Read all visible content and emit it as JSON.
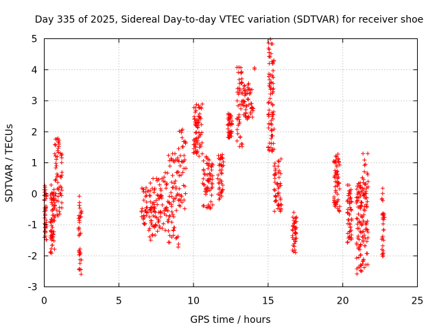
{
  "chart_data": {
    "type": "scatter",
    "title": "Day 335 of 2025, Sidereal Day-to-day VTEC variation (SDTVAR) for receiver shoe",
    "xlabel": "GPS time / hours",
    "ylabel": "SDTVAR / TECUs",
    "xlim": [
      0,
      25
    ],
    "ylim": [
      -3,
      5
    ],
    "xticks": [
      0,
      5,
      10,
      15,
      20,
      25
    ],
    "yticks": [
      -3,
      -2,
      -1,
      0,
      1,
      2,
      3,
      4,
      5
    ],
    "grid": true,
    "marker": "+",
    "color": "#ff0000",
    "clusters": [
      {
        "x": [
          0.0,
          0.15
        ],
        "y": [
          -1.5,
          0.3
        ],
        "n": 40
      },
      {
        "x": [
          0.4,
          0.7
        ],
        "y": [
          -2.0,
          0.3
        ],
        "n": 60
      },
      {
        "x": [
          0.7,
          1.2
        ],
        "y": [
          -0.8,
          1.8
        ],
        "n": 60
      },
      {
        "x": [
          2.3,
          2.5
        ],
        "y": [
          -2.6,
          0.1
        ],
        "n": 35
      },
      {
        "x": [
          6.5,
          7.0
        ],
        "y": [
          -1.0,
          0.2
        ],
        "n": 30
      },
      {
        "x": [
          7.0,
          7.7
        ],
        "y": [
          -1.5,
          0.5
        ],
        "n": 60
      },
      {
        "x": [
          7.7,
          8.3
        ],
        "y": [
          -1.2,
          0.7
        ],
        "n": 40
      },
      {
        "x": [
          8.3,
          9.0
        ],
        "y": [
          -1.8,
          1.3
        ],
        "n": 60
      },
      {
        "x": [
          9.0,
          9.5
        ],
        "y": [
          -0.5,
          2.2
        ],
        "n": 40
      },
      {
        "x": [
          10.0,
          10.6
        ],
        "y": [
          1.2,
          2.9
        ],
        "n": 70
      },
      {
        "x": [
          10.6,
          11.3
        ],
        "y": [
          -0.5,
          1.2
        ],
        "n": 60
      },
      {
        "x": [
          11.6,
          12.0
        ],
        "y": [
          -0.2,
          1.3
        ],
        "n": 40
      },
      {
        "x": [
          12.3,
          12.6
        ],
        "y": [
          1.8,
          2.6
        ],
        "n": 40
      },
      {
        "x": [
          12.9,
          13.3
        ],
        "y": [
          1.5,
          4.1
        ],
        "n": 45
      },
      {
        "x": [
          13.3,
          14.0
        ],
        "y": [
          2.4,
          3.6
        ],
        "n": 50
      },
      {
        "x": [
          14.0,
          14.3
        ],
        "y": [
          4.0,
          4.1
        ],
        "n": 2
      },
      {
        "x": [
          15.0,
          15.4
        ],
        "y": [
          1.3,
          5.0
        ],
        "n": 80
      },
      {
        "x": [
          15.4,
          15.9
        ],
        "y": [
          -0.6,
          1.2
        ],
        "n": 50
      },
      {
        "x": [
          16.6,
          16.9
        ],
        "y": [
          -2.0,
          -0.6
        ],
        "n": 40
      },
      {
        "x": [
          19.4,
          19.8
        ],
        "y": [
          -0.7,
          1.3
        ],
        "n": 60
      },
      {
        "x": [
          20.3,
          20.6
        ],
        "y": [
          -1.7,
          0.3
        ],
        "n": 50
      },
      {
        "x": [
          20.9,
          21.3
        ],
        "y": [
          -2.7,
          0.4
        ],
        "n": 70
      },
      {
        "x": [
          21.3,
          21.7
        ],
        "y": [
          -2.4,
          1.3
        ],
        "n": 70
      },
      {
        "x": [
          22.6,
          22.8
        ],
        "y": [
          -2.1,
          0.2
        ],
        "n": 30
      }
    ]
  }
}
